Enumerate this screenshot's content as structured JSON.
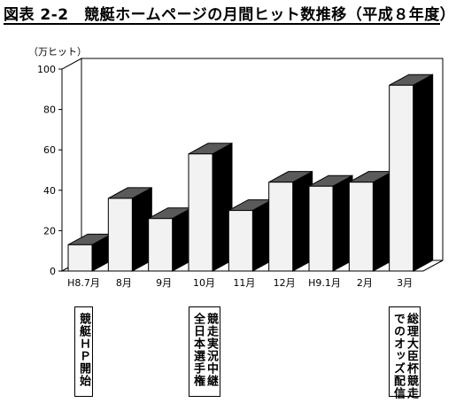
{
  "title": "図表 2-2　競艇ホームページの月間ヒット数推移（平成８年度）",
  "colors": {
    "front": "#f2f2f2",
    "top": "#5a5a5a",
    "side": "#000000",
    "axis": "#000000"
  },
  "chart_data": {
    "type": "bar",
    "title": "図表 2-2　競艇ホームページの月間ヒット数推移（平成８年度）",
    "unit_label": "（万ヒット）",
    "categories": [
      "H8.7月",
      "8月",
      "9月",
      "10月",
      "11月",
      "12月",
      "H9.1月",
      "2月",
      "3月"
    ],
    "values": [
      13,
      36,
      26,
      58,
      30,
      44,
      42,
      44,
      92
    ],
    "ylim": [
      0,
      100
    ],
    "yticks": [
      0,
      20,
      40,
      60,
      80,
      100
    ],
    "grid": false,
    "style": "3d"
  },
  "annotations": [
    {
      "category": "H8.7月",
      "text": "競艇ＨＰ開始"
    },
    {
      "category": "10月",
      "text": "競走実況中継\n全日本選手権"
    },
    {
      "category": "3月",
      "text": "総理大臣杯競走\nでのオッズ配信"
    }
  ]
}
